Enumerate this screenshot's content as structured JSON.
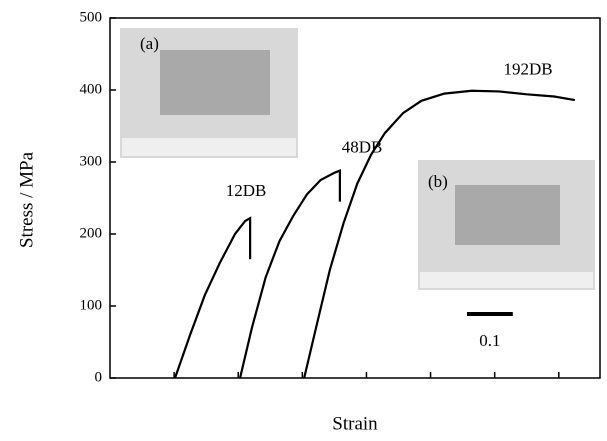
{
  "chart_data": {
    "type": "line",
    "x_label": "Strain",
    "y_label": "Stress / MPa",
    "xlim": [
      0,
      1.07
    ],
    "ylim": [
      0,
      500
    ],
    "xticks": [
      0.14,
      0.28,
      0.42,
      0.56,
      0.7,
      0.84,
      0.98
    ],
    "yticks": [
      0,
      100,
      200,
      300,
      400,
      500
    ],
    "series": [
      {
        "name": "12DB",
        "color": "#000000",
        "x": [
          0.142,
          0.175,
          0.207,
          0.24,
          0.273,
          0.295,
          0.306,
          0.306
        ],
        "values": [
          0,
          60,
          115,
          160,
          200,
          218,
          222,
          165
        ]
      },
      {
        "name": "48DB",
        "color": "#000000",
        "x": [
          0.284,
          0.31,
          0.34,
          0.37,
          0.4,
          0.43,
          0.46,
          0.49,
          0.502,
          0.502
        ],
        "values": [
          0,
          70,
          140,
          190,
          225,
          255,
          275,
          285,
          288,
          245
        ]
      },
      {
        "name": "192DB",
        "color": "#000000",
        "x": [
          0.424,
          0.45,
          0.48,
          0.51,
          0.54,
          0.57,
          0.6,
          0.64,
          0.68,
          0.73,
          0.79,
          0.85,
          0.91,
          0.97,
          1.015
        ],
        "values": [
          0,
          70,
          150,
          215,
          270,
          310,
          340,
          368,
          385,
          395,
          399,
          398,
          394,
          391,
          386
        ]
      }
    ],
    "scale_bar": {
      "value": 0.1,
      "label": "0.1"
    },
    "insets": [
      "(a)",
      "(b)"
    ]
  }
}
